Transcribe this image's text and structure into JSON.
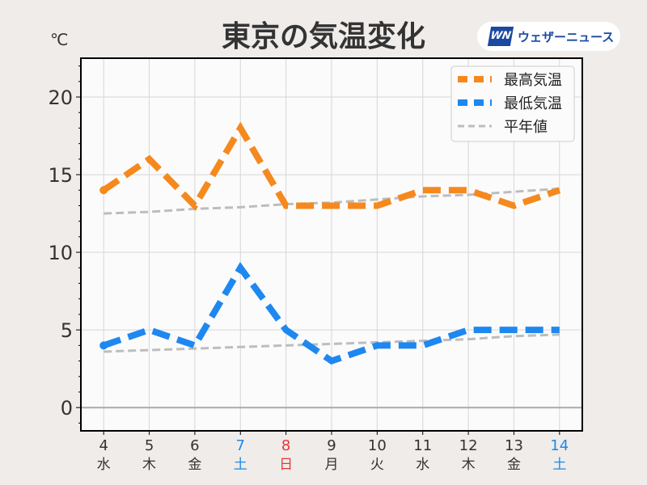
{
  "chart_data": {
    "type": "line",
    "title": "東京の気温変化",
    "ylabel": "℃",
    "xlabel": "",
    "ylim": [
      -1.5,
      22.5
    ],
    "xlim": [
      3.5,
      14.5
    ],
    "yticks": [
      0,
      5,
      10,
      15,
      20
    ],
    "grid": true,
    "legend_position": "top-right",
    "x": [
      4,
      5,
      6,
      7,
      8,
      9,
      10,
      11,
      12,
      13,
      14
    ],
    "weekdays": [
      "水",
      "木",
      "金",
      "土",
      "日",
      "月",
      "火",
      "水",
      "木",
      "金",
      "土"
    ],
    "weekday_colors": [
      "#333333",
      "#333333",
      "#333333",
      "#1e88e5",
      "#e53935",
      "#333333",
      "#333333",
      "#333333",
      "#333333",
      "#333333",
      "#1e88e5"
    ],
    "series": [
      {
        "name": "最高気温",
        "color": "#f5891e",
        "values": [
          14,
          16,
          13,
          18,
          13,
          13,
          13,
          14,
          14,
          13,
          14
        ]
      },
      {
        "name": "最低気温",
        "color": "#1e88f0",
        "values": [
          4,
          5,
          4,
          9,
          5,
          3,
          4,
          4,
          5,
          5,
          5
        ]
      },
      {
        "name": "平年値",
        "color": "#bdbdbd",
        "values_high": [
          12.5,
          12.6,
          12.8,
          12.9,
          13.1,
          13.2,
          13.4,
          13.6,
          13.7,
          13.9,
          14.1
        ],
        "values_low": [
          3.6,
          3.7,
          3.8,
          3.9,
          4.0,
          4.1,
          4.2,
          4.3,
          4.4,
          4.6,
          4.7
        ]
      }
    ]
  },
  "brand": {
    "mark": "WN",
    "name": "ウェザーニュース"
  }
}
